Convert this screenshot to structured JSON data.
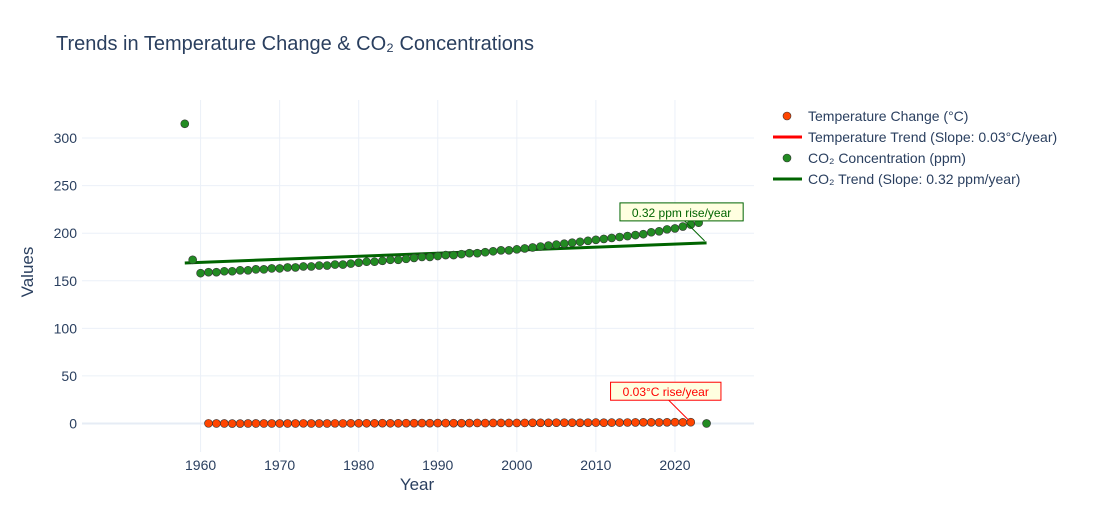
{
  "chart_data": {
    "type": "scatter",
    "title": "Trends in Temperature Change & CO₂ Concentrations",
    "xlabel": "Year",
    "ylabel": "Values",
    "xlim": [
      1945,
      2030
    ],
    "ylim": [
      -30,
      340
    ],
    "x_ticks": [
      1960,
      1970,
      1980,
      1990,
      2000,
      2010,
      2020
    ],
    "y_ticks": [
      0,
      50,
      100,
      150,
      200,
      250,
      300
    ],
    "grid": true,
    "legend_position": "right",
    "series": [
      {
        "name": "Temperature Change (°C)",
        "kind": "markers",
        "color": "#ff4500",
        "x": [
          1961,
          1962,
          1963,
          1964,
          1965,
          1966,
          1967,
          1968,
          1969,
          1970,
          1971,
          1972,
          1973,
          1974,
          1975,
          1976,
          1977,
          1978,
          1979,
          1980,
          1981,
          1982,
          1983,
          1984,
          1985,
          1986,
          1987,
          1988,
          1989,
          1990,
          1991,
          1992,
          1993,
          1994,
          1995,
          1996,
          1997,
          1998,
          1999,
          2000,
          2001,
          2002,
          2003,
          2004,
          2005,
          2006,
          2007,
          2008,
          2009,
          2010,
          2011,
          2012,
          2013,
          2014,
          2015,
          2016,
          2017,
          2018,
          2019,
          2020,
          2021,
          2022
        ],
        "y": [
          0.1,
          0.0,
          0.0,
          -0.1,
          -0.1,
          0.0,
          0.0,
          0.0,
          0.0,
          0.0,
          0.0,
          0.0,
          0.1,
          0.0,
          0.0,
          0.0,
          0.1,
          0.1,
          0.2,
          0.2,
          0.2,
          0.2,
          0.3,
          0.2,
          0.2,
          0.3,
          0.3,
          0.4,
          0.3,
          0.4,
          0.4,
          0.3,
          0.3,
          0.4,
          0.5,
          0.4,
          0.5,
          0.6,
          0.5,
          0.5,
          0.6,
          0.7,
          0.7,
          0.7,
          0.8,
          0.8,
          0.8,
          0.7,
          0.8,
          0.9,
          0.8,
          0.9,
          0.9,
          1.0,
          1.1,
          1.2,
          1.2,
          1.1,
          1.2,
          1.3,
          1.2,
          1.3
        ]
      },
      {
        "name": "Temperature Trend (Slope: 0.03°C/year)",
        "kind": "line",
        "color": "#ff0000",
        "x": [
          1961,
          2022
        ],
        "y": [
          -0.2,
          1.4
        ]
      },
      {
        "name": "CO₂ Concentration (ppm)",
        "kind": "markers",
        "color": "#228b22",
        "x": [
          1958,
          1959,
          1960,
          1961,
          1962,
          1963,
          1964,
          1965,
          1966,
          1967,
          1968,
          1969,
          1970,
          1971,
          1972,
          1973,
          1974,
          1975,
          1976,
          1977,
          1978,
          1979,
          1980,
          1981,
          1982,
          1983,
          1984,
          1985,
          1986,
          1987,
          1988,
          1989,
          1990,
          1991,
          1992,
          1993,
          1994,
          1995,
          1996,
          1997,
          1998,
          1999,
          2000,
          2001,
          2002,
          2003,
          2004,
          2005,
          2006,
          2007,
          2008,
          2009,
          2010,
          2011,
          2012,
          2013,
          2014,
          2015,
          2016,
          2017,
          2018,
          2019,
          2020,
          2021,
          2022,
          2023,
          2024
        ],
        "y": [
          315,
          172,
          158,
          159,
          159,
          160,
          160,
          161,
          161,
          162,
          162,
          163,
          163,
          164,
          164,
          165,
          165,
          166,
          166,
          167,
          167,
          168,
          169,
          170,
          170,
          171,
          172,
          172,
          173,
          174,
          175,
          175,
          176,
          177,
          177,
          178,
          179,
          179,
          180,
          181,
          182,
          182,
          183,
          184,
          185,
          186,
          187,
          188,
          189,
          190,
          191,
          192,
          193,
          194,
          195,
          196,
          197,
          198,
          199,
          201,
          202,
          204,
          205,
          207,
          209,
          211,
          0
        ]
      },
      {
        "name": "CO₂ Trend (Slope: 0.32 ppm/year)",
        "kind": "line",
        "color": "#006400",
        "x": [
          1958,
          2024
        ],
        "y": [
          168.7,
          189.8
        ]
      }
    ],
    "annotations": [
      {
        "text": "0.03°C rise/year",
        "x": 2022,
        "y": 1.3,
        "color": "#ff0000",
        "bg": "#ffffe0"
      },
      {
        "text": "0.32 ppm rise/year",
        "x": 2024,
        "y": 189.8,
        "color": "#006400",
        "bg": "#ffffe0"
      }
    ]
  }
}
